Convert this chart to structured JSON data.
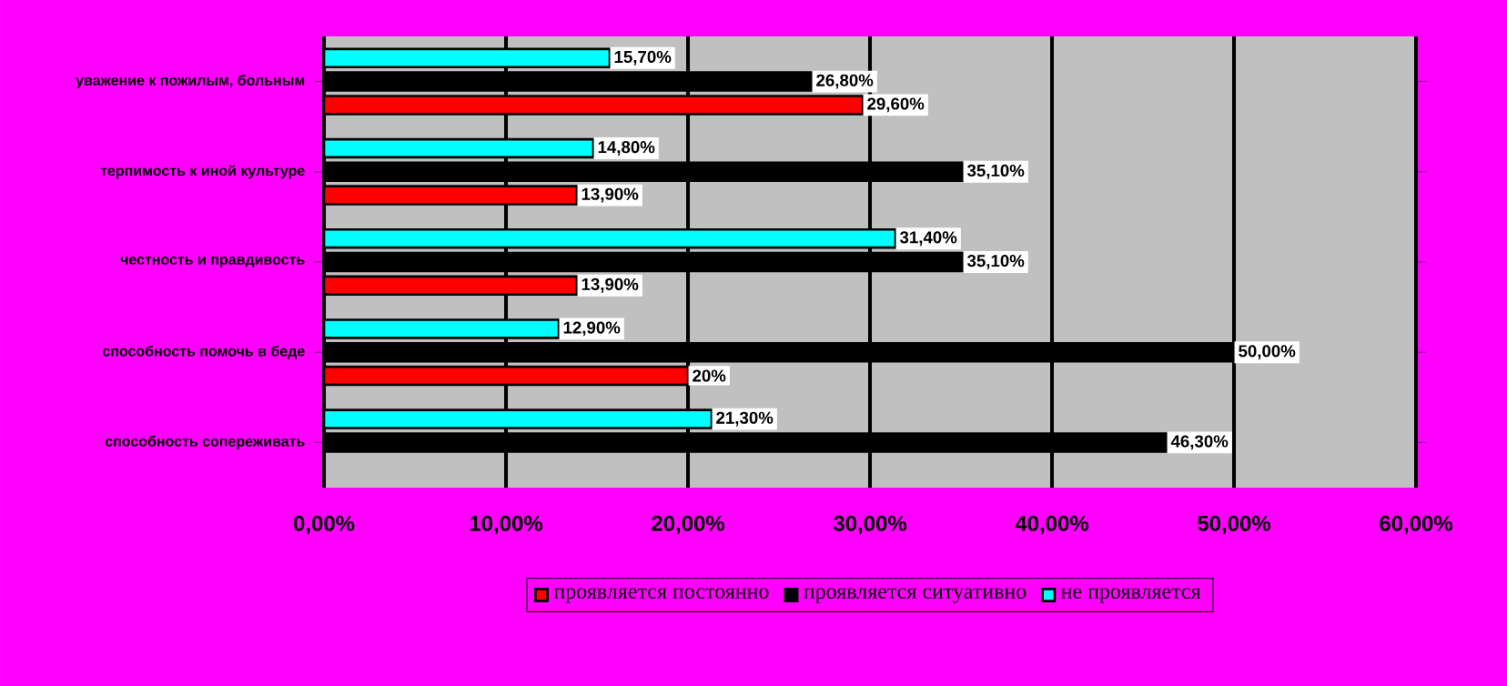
{
  "chart_data": {
    "type": "bar",
    "orientation": "horizontal",
    "categories": [
      "уважение к пожилым, больным",
      "терпимость к иной культуре",
      "честность и правдивость",
      "способность помочь в беде",
      "способность сопереживать"
    ],
    "series": [
      {
        "name": "проявляется постоянно",
        "color": "#ff0000",
        "values": [
          29.6,
          13.9,
          13.9,
          20,
          null
        ],
        "value_labels": [
          "29,60%",
          "13,90%",
          "13,90%",
          "20%",
          null
        ]
      },
      {
        "name": "проявляется ситуативно",
        "color": "#000000",
        "values": [
          26.8,
          35.1,
          35.1,
          50,
          46.3
        ],
        "value_labels": [
          "26,80%",
          "35,10%",
          "35,10%",
          "50,00%",
          "46,30%"
        ]
      },
      {
        "name": "не проявляется",
        "color": "#00ffff",
        "values": [
          15.7,
          14.8,
          31.4,
          12.9,
          21.3
        ],
        "value_labels": [
          "15,70%",
          "14,80%",
          "31,40%",
          "12,90%",
          "21,30%"
        ]
      }
    ],
    "xlim": [
      0,
      60
    ],
    "xticks": [
      {
        "value": 0,
        "label": "0,00%"
      },
      {
        "value": 10,
        "label": "10,00%"
      },
      {
        "value": 20,
        "label": "20,00%"
      },
      {
        "value": 30,
        "label": "30,00%"
      },
      {
        "value": 40,
        "label": "40,00%"
      },
      {
        "value": 50,
        "label": "50,00%"
      },
      {
        "value": 60,
        "label": "60,00%"
      }
    ],
    "grid": "x",
    "legend": "bottom"
  }
}
